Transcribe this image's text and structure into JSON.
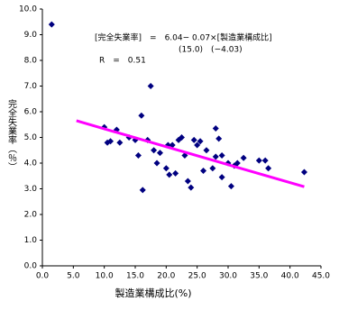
{
  "chart_data": {
    "type": "scatter",
    "x_label": "製造業構成比(%)",
    "y_label": "完全失業率（％）",
    "annotations": [
      "[完全失業率]　=　6.04− 0.07×[製造業構成比]",
      "(15.0)　(−4.03)",
      "R　=　0.51"
    ],
    "xlim": [
      0,
      45
    ],
    "xticks": [
      {
        "value": 0,
        "label": "0.0"
      },
      {
        "value": 5,
        "label": "5.0"
      },
      {
        "value": 10,
        "label": "10.0"
      },
      {
        "value": 15,
        "label": "15.0"
      },
      {
        "value": 20,
        "label": "20.0"
      },
      {
        "value": 25,
        "label": "25.0"
      },
      {
        "value": 30,
        "label": "30.0"
      },
      {
        "value": 35,
        "label": "35.0"
      },
      {
        "value": 40,
        "label": "40.0"
      },
      {
        "value": 45,
        "label": "45.0"
      }
    ],
    "ylim": [
      0,
      10
    ],
    "yticks": [
      {
        "value": 0,
        "label": "0.0"
      },
      {
        "value": 1,
        "label": "1.0"
      },
      {
        "value": 2,
        "label": "2.0"
      },
      {
        "value": 3,
        "label": "3.0"
      },
      {
        "value": 4,
        "label": "4.0"
      },
      {
        "value": 5,
        "label": "5.0"
      },
      {
        "value": 6,
        "label": "6.0"
      },
      {
        "value": 7,
        "label": "7.0"
      },
      {
        "value": 8,
        "label": "8.0"
      },
      {
        "value": 9,
        "label": "9.0"
      },
      {
        "value": 10,
        "label": "10.0"
      }
    ],
    "series": [
      {
        "color": "#000080",
        "x": [
          1.5,
          10.0,
          10.5,
          11.0,
          12.0,
          12.5,
          14.0,
          15.0,
          15.5,
          16.0,
          16.2,
          17.0,
          17.5,
          18.0,
          18.5,
          19.0,
          20.0,
          20.3,
          20.5,
          21.0,
          21.5,
          22.0,
          22.5,
          23.0,
          23.5,
          24.0,
          24.5,
          25.0,
          25.5,
          26.0,
          26.5,
          27.5,
          28.0,
          28.5,
          28.0,
          29.0,
          29.0,
          30.0,
          30.5,
          31.0,
          31.5,
          32.5,
          35.0,
          36.0,
          36.5,
          42.3
        ],
        "values": [
          9.4,
          5.4,
          4.8,
          4.85,
          5.3,
          4.8,
          5.0,
          4.9,
          4.3,
          5.85,
          2.95,
          4.9,
          7.0,
          4.5,
          4.0,
          4.4,
          3.8,
          4.7,
          3.55,
          4.7,
          3.6,
          4.9,
          5.0,
          4.3,
          3.3,
          3.05,
          4.9,
          4.7,
          4.85,
          3.7,
          4.5,
          3.8,
          5.35,
          4.95,
          4.25,
          3.45,
          4.3,
          4.0,
          3.1,
          3.9,
          4.0,
          4.2,
          4.1,
          4.1,
          3.8,
          3.65
        ]
      },
      {
        "color": "#ff00ff",
        "line": true,
        "x": [
          5.5,
          42.3
        ],
        "values": [
          5.65,
          3.08
        ]
      }
    ]
  }
}
